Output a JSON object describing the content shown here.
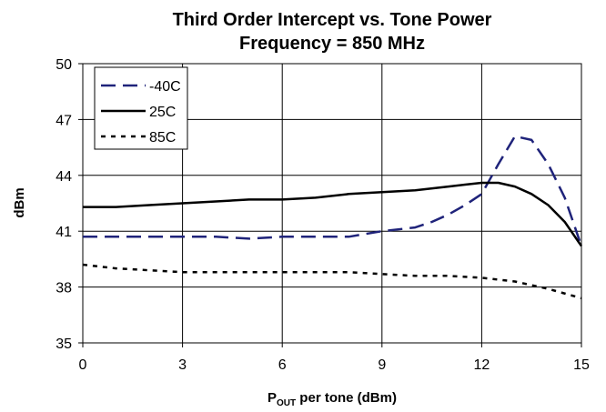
{
  "chart_data": {
    "type": "line",
    "title": "Third Order Intercept vs. Tone Power",
    "subtitle": "Frequency = 850 MHz",
    "xlabel": {
      "main": "P",
      "sub": "OUT",
      "rest": " per tone (dBm)"
    },
    "ylabel": "dBm",
    "xlim": [
      0,
      15
    ],
    "ylim": [
      35,
      50
    ],
    "xticks": [
      0,
      3,
      6,
      9,
      12,
      15
    ],
    "yticks": [
      35,
      38,
      41,
      44,
      47,
      50
    ],
    "grid": true,
    "legend_position": "top-left",
    "series": [
      {
        "name": "-40C",
        "color": "#1f237a",
        "dash": "long-dash",
        "x": [
          0,
          1,
          2,
          3,
          4,
          5,
          6,
          7,
          8,
          9,
          10,
          10.5,
          11,
          11.5,
          12,
          12.5,
          13,
          13.5,
          14,
          14.5,
          15
        ],
        "y": [
          40.7,
          40.7,
          40.7,
          40.7,
          40.7,
          40.6,
          40.7,
          40.7,
          40.7,
          41.0,
          41.2,
          41.5,
          41.9,
          42.4,
          43.0,
          44.6,
          46.1,
          45.9,
          44.6,
          42.8,
          40.2
        ]
      },
      {
        "name": "25C",
        "color": "#000000",
        "dash": "solid",
        "x": [
          0,
          1,
          2,
          3,
          4,
          5,
          6,
          7,
          8,
          9,
          10,
          11,
          11.5,
          12,
          12.5,
          13,
          13.5,
          14,
          14.5,
          15
        ],
        "y": [
          42.3,
          42.3,
          42.4,
          42.5,
          42.6,
          42.7,
          42.7,
          42.8,
          43.0,
          43.1,
          43.2,
          43.4,
          43.5,
          43.6,
          43.6,
          43.4,
          43.0,
          42.4,
          41.5,
          40.2
        ]
      },
      {
        "name": "85C",
        "color": "#000000",
        "dash": "short-dash",
        "x": [
          0,
          1,
          2,
          3,
          4,
          5,
          6,
          7,
          8,
          9,
          10,
          11,
          12,
          13,
          14,
          15
        ],
        "y": [
          39.2,
          39.0,
          38.9,
          38.8,
          38.8,
          38.8,
          38.8,
          38.8,
          38.8,
          38.7,
          38.6,
          38.6,
          38.5,
          38.3,
          37.9,
          37.4
        ]
      }
    ]
  }
}
